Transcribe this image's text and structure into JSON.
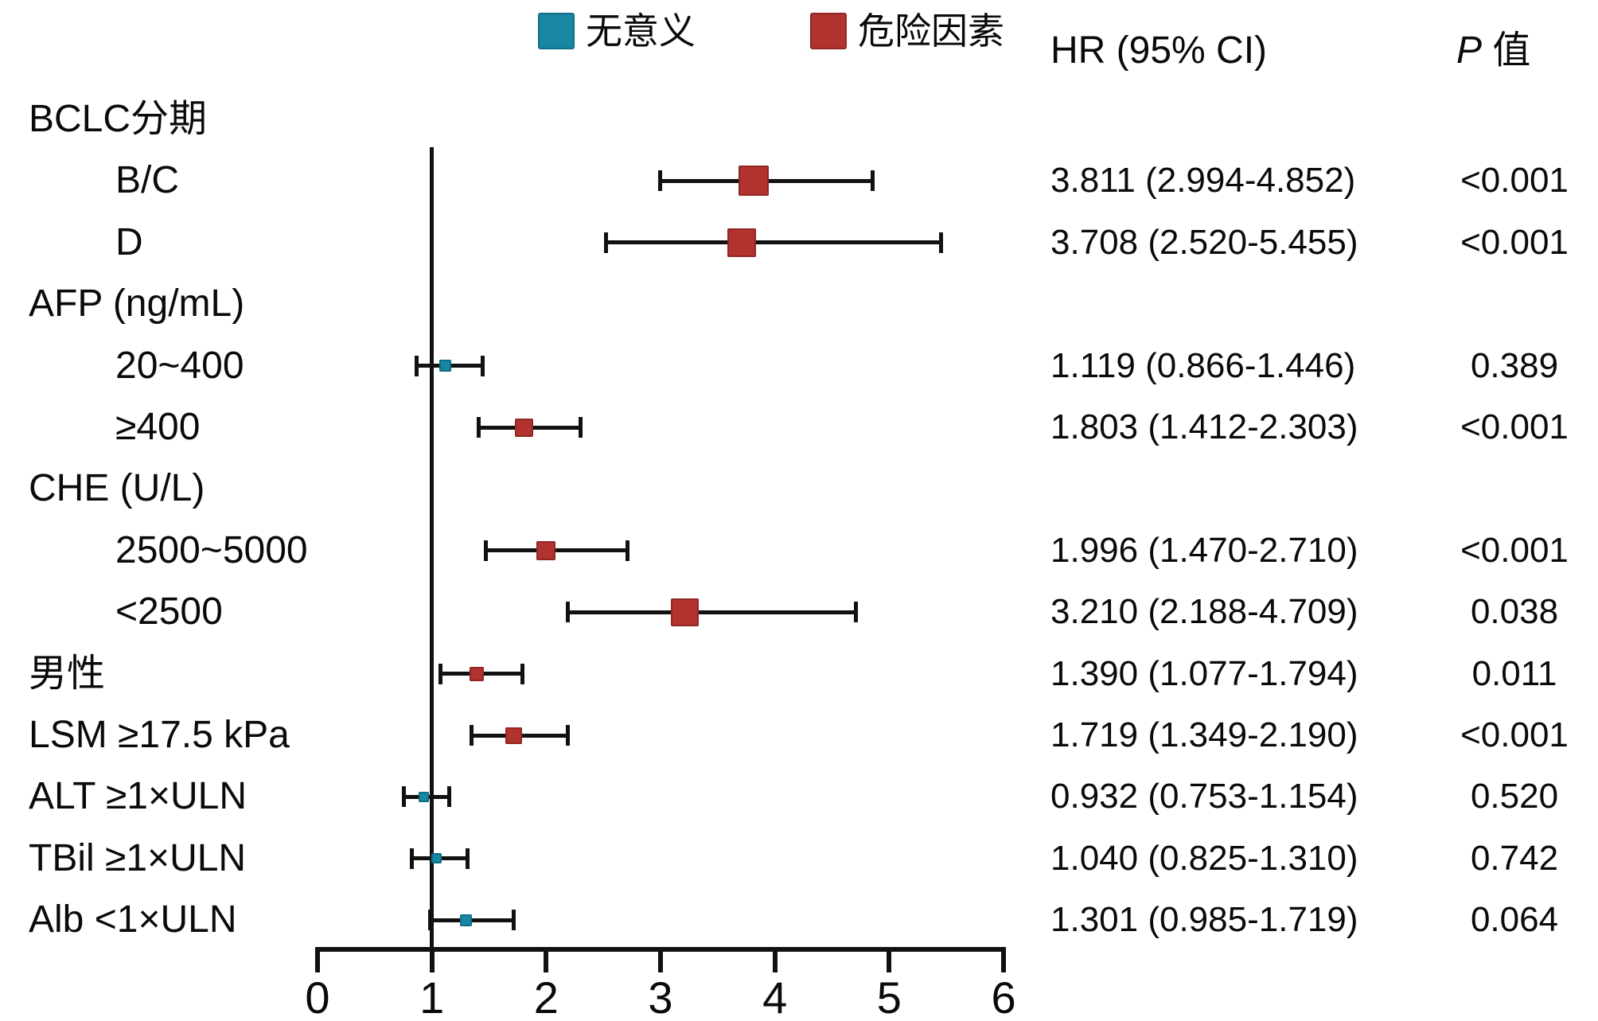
{
  "legend": {
    "not_significant": {
      "label": "无意义",
      "color": "#1787A3",
      "border": "#0E6E86"
    },
    "risk_factor": {
      "label": "危险因素",
      "color": "#B23230",
      "border": "#8F2723"
    }
  },
  "columns": {
    "hr_header": "HR (95% CI)",
    "p_header_italic": "P",
    "p_header_rest": "值"
  },
  "chart_data": {
    "type": "forest",
    "x_axis": {
      "min": 0,
      "max": 6,
      "ticks": [
        0,
        1,
        2,
        3,
        4,
        5,
        6
      ],
      "reference_line": 1
    },
    "rows": [
      {
        "kind": "group",
        "label": "BCLC分期"
      },
      {
        "kind": "item",
        "indent": true,
        "label": "B/C",
        "hr": 3.811,
        "ci_low": 2.994,
        "ci_high": 4.852,
        "hr_ci_text": "3.811 (2.994-4.852)",
        "p_text": "<0.001",
        "category": "risk_factor",
        "marker_size": 38
      },
      {
        "kind": "item",
        "indent": true,
        "label": "D",
        "hr": 3.708,
        "ci_low": 2.52,
        "ci_high": 5.455,
        "hr_ci_text": "3.708 (2.520-5.455)",
        "p_text": "<0.001",
        "category": "risk_factor",
        "marker_size": 36
      },
      {
        "kind": "group",
        "label": "AFP (ng/mL)"
      },
      {
        "kind": "item",
        "indent": true,
        "label": "20~400",
        "hr": 1.119,
        "ci_low": 0.866,
        "ci_high": 1.446,
        "hr_ci_text": "1.119 (0.866-1.446)",
        "p_text": "0.389",
        "category": "not_significant",
        "marker_size": 15
      },
      {
        "kind": "item",
        "indent": true,
        "label": "≥400",
        "hr": 1.803,
        "ci_low": 1.412,
        "ci_high": 2.303,
        "hr_ci_text": "1.803 (1.412-2.303)",
        "p_text": "<0.001",
        "category": "risk_factor",
        "marker_size": 23
      },
      {
        "kind": "group",
        "label": "CHE (U/L)"
      },
      {
        "kind": "item",
        "indent": true,
        "label": "2500~5000",
        "hr": 1.996,
        "ci_low": 1.47,
        "ci_high": 2.71,
        "hr_ci_text": "1.996 (1.470-2.710)",
        "p_text": "<0.001",
        "category": "risk_factor",
        "marker_size": 24
      },
      {
        "kind": "item",
        "indent": true,
        "label": "<2500",
        "hr": 3.21,
        "ci_low": 2.188,
        "ci_high": 4.709,
        "hr_ci_text": "3.210 (2.188-4.709)",
        "p_text": "0.038",
        "category": "risk_factor",
        "marker_size": 35
      },
      {
        "kind": "item",
        "indent": false,
        "label": "男性",
        "hr": 1.39,
        "ci_low": 1.077,
        "ci_high": 1.794,
        "hr_ci_text": "1.390 (1.077-1.794)",
        "p_text": "0.011",
        "category": "risk_factor",
        "marker_size": 18
      },
      {
        "kind": "item",
        "indent": false,
        "label": "LSM ≥17.5 kPa",
        "hr": 1.719,
        "ci_low": 1.349,
        "ci_high": 2.19,
        "hr_ci_text": "1.719 (1.349-2.190)",
        "p_text": "<0.001",
        "category": "risk_factor",
        "marker_size": 21
      },
      {
        "kind": "item",
        "indent": false,
        "label": "ALT ≥1×ULN",
        "hr": 0.932,
        "ci_low": 0.753,
        "ci_high": 1.154,
        "hr_ci_text": "0.932 (0.753-1.154)",
        "p_text": "0.520",
        "category": "not_significant",
        "marker_size": 13
      },
      {
        "kind": "item",
        "indent": false,
        "label": "TBil ≥1×ULN",
        "hr": 1.04,
        "ci_low": 0.825,
        "ci_high": 1.31,
        "hr_ci_text": "1.040 (0.825-1.310)",
        "p_text": "0.742",
        "category": "not_significant",
        "marker_size": 13
      },
      {
        "kind": "item",
        "indent": false,
        "label": "Alb <1×ULN",
        "hr": 1.301,
        "ci_low": 0.985,
        "ci_high": 1.719,
        "hr_ci_text": "1.301 (0.985-1.719)",
        "p_text": "0.064",
        "category": "not_significant",
        "marker_size": 15
      }
    ]
  }
}
